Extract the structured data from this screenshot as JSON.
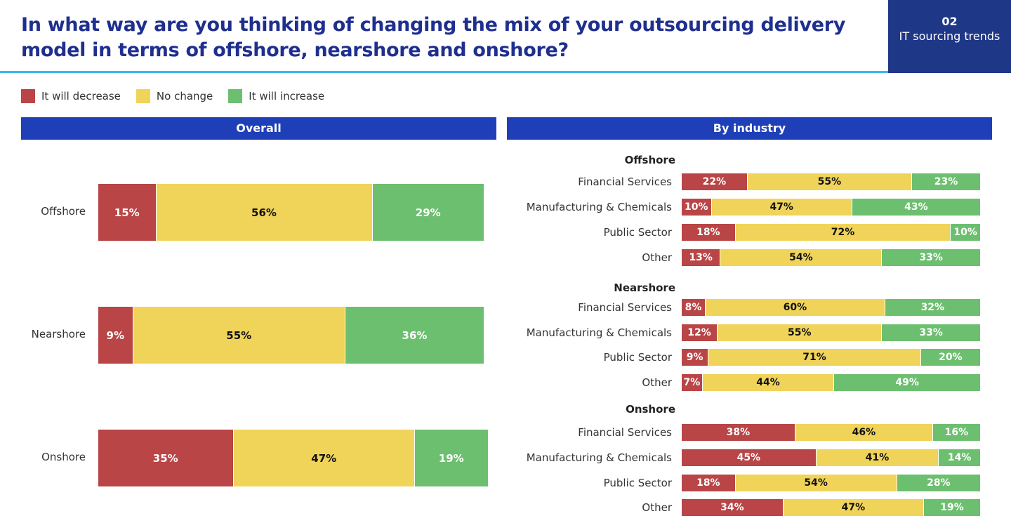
{
  "header": {
    "title": "In what way are you thinking of changing the mix of your outsourcing delivery model in terms of offshore, nearshore and onshore?",
    "section_number": "02",
    "section_name": "IT sourcing trends"
  },
  "colors": {
    "decrease": "#b94546",
    "no_change": "#f0d45a",
    "increase": "#6dbf70",
    "panel": "#1f3fb8",
    "title": "#1f2f8f"
  },
  "chart_data": [
    {
      "type": "bar",
      "orientation": "horizontal",
      "stacked": true,
      "percent": true,
      "title": "Overall",
      "legend": [
        "It will decrease",
        "No change",
        "It will increase"
      ],
      "legend_placement": "top-left",
      "categories": [
        "Offshore",
        "Nearshore",
        "Onshore"
      ],
      "series": [
        {
          "name": "It will decrease",
          "values": [
            15,
            9,
            35
          ]
        },
        {
          "name": "No change",
          "values": [
            56,
            55,
            47
          ]
        },
        {
          "name": "It will increase",
          "values": [
            29,
            36,
            19
          ]
        }
      ]
    },
    {
      "type": "bar",
      "orientation": "horizontal",
      "stacked": true,
      "percent": true,
      "title": "By industry",
      "groups": [
        {
          "name": "Offshore",
          "categories": [
            "Financial Services",
            "Manufacturing & Chemicals",
            "Public Sector",
            "Other"
          ],
          "series": [
            {
              "name": "It will decrease",
              "values": [
                22,
                10,
                18,
                13
              ]
            },
            {
              "name": "No change",
              "values": [
                55,
                47,
                72,
                54
              ]
            },
            {
              "name": "It will increase",
              "values": [
                23,
                43,
                10,
                33
              ]
            }
          ]
        },
        {
          "name": "Nearshore",
          "categories": [
            "Financial Services",
            "Manufacturing & Chemicals",
            "Public Sector",
            "Other"
          ],
          "series": [
            {
              "name": "It will decrease",
              "values": [
                8,
                12,
                9,
                7
              ]
            },
            {
              "name": "No change",
              "values": [
                60,
                55,
                71,
                44
              ]
            },
            {
              "name": "It will increase",
              "values": [
                32,
                33,
                20,
                49
              ]
            }
          ]
        },
        {
          "name": "Onshore",
          "categories": [
            "Financial Services",
            "Manufacturing & Chemicals",
            "Public Sector",
            "Other"
          ],
          "series": [
            {
              "name": "It will decrease",
              "values": [
                38,
                45,
                18,
                34
              ]
            },
            {
              "name": "No change",
              "values": [
                46,
                41,
                54,
                47
              ]
            },
            {
              "name": "It will increase",
              "values": [
                16,
                14,
                28,
                19
              ]
            }
          ]
        }
      ]
    }
  ]
}
